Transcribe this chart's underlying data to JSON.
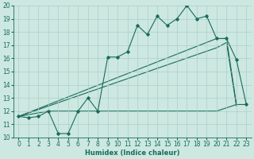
{
  "xlabel": "Humidex (Indice chaleur)",
  "bg_color": "#cce8e0",
  "line_color": "#1a6b5a",
  "grid_color": "#aacfc8",
  "xlim": [
    -0.5,
    23.5
  ],
  "ylim": [
    10,
    20
  ],
  "yticks": [
    10,
    11,
    12,
    13,
    14,
    15,
    16,
    17,
    18,
    19,
    20
  ],
  "xticks": [
    0,
    1,
    2,
    3,
    4,
    5,
    6,
    7,
    8,
    9,
    10,
    11,
    12,
    13,
    14,
    15,
    16,
    17,
    18,
    19,
    20,
    21,
    22,
    23
  ],
  "series1_x": [
    0,
    1,
    2,
    3,
    4,
    5,
    6,
    7,
    8,
    9,
    10,
    11,
    12,
    13,
    14,
    15,
    16,
    17,
    18,
    19,
    20,
    21,
    22,
    23
  ],
  "series1_y": [
    11.6,
    11.5,
    11.6,
    12.0,
    10.3,
    10.3,
    12.0,
    13.0,
    12.0,
    16.1,
    16.1,
    16.5,
    18.5,
    17.8,
    19.2,
    18.5,
    19.0,
    20.0,
    19.0,
    19.2,
    17.5,
    17.5,
    15.9,
    12.5
  ],
  "series2_x": [
    0,
    20,
    21,
    22
  ],
  "series2_y": [
    11.6,
    17.5,
    17.5,
    12.5
  ],
  "series3_x": [
    0,
    20,
    21,
    22
  ],
  "series3_y": [
    11.6,
    16.8,
    17.2,
    12.4
  ],
  "series4_x": [
    0,
    3,
    12,
    20,
    22,
    23
  ],
  "series4_y": [
    11.6,
    12.0,
    12.0,
    12.0,
    12.5,
    12.5
  ],
  "tick_fontsize": 5.5,
  "xlabel_fontsize": 6.0
}
